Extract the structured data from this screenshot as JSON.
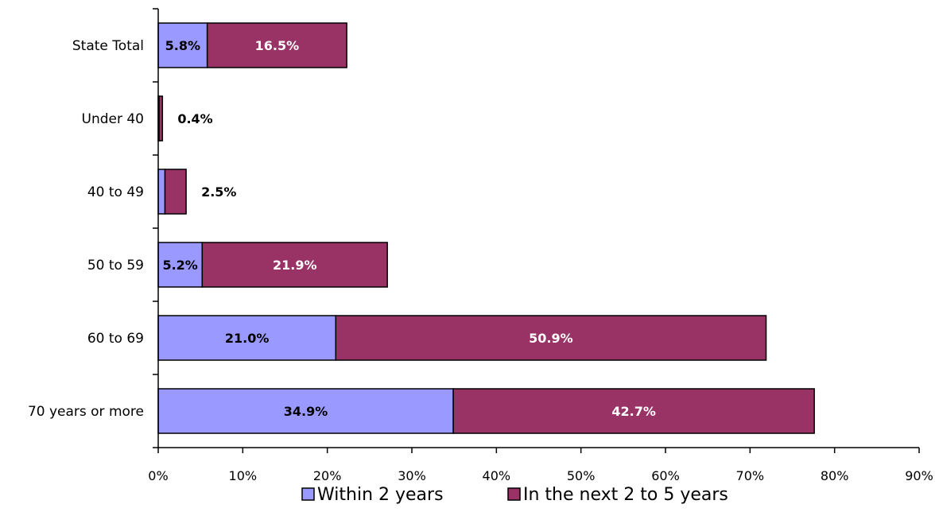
{
  "chart_data": {
    "type": "bar",
    "orientation": "horizontal",
    "stacked": true,
    "categories": [
      "State Total",
      "Under 40",
      "40 to 49",
      "50 to 59",
      "60 to 69",
      "70 years or more"
    ],
    "series": [
      {
        "name": "Within 2 years",
        "color": "#9999ff",
        "label_color": "#000000",
        "values": [
          5.8,
          0.1,
          0.8,
          5.2,
          21.0,
          34.9
        ],
        "labels": [
          "5.8%",
          "",
          "",
          "5.2%",
          "21.0%",
          "34.9%"
        ]
      },
      {
        "name": "In the next 2 to 5 years",
        "color": "#993366",
        "label_color": "#ffffff",
        "values": [
          16.5,
          0.4,
          2.5,
          21.9,
          50.9,
          42.7
        ],
        "labels": [
          "16.5%",
          "0.4%",
          "2.5%",
          "21.9%",
          "50.9%",
          "42.7%"
        ]
      }
    ],
    "xlim": [
      0,
      90
    ],
    "x_ticks": [
      "0%",
      "10%",
      "20%",
      "30%",
      "40%",
      "50%",
      "60%",
      "70%",
      "80%",
      "90%"
    ],
    "title": "",
    "xlabel": "",
    "ylabel": "",
    "grid": false,
    "legend_position": "bottom"
  }
}
